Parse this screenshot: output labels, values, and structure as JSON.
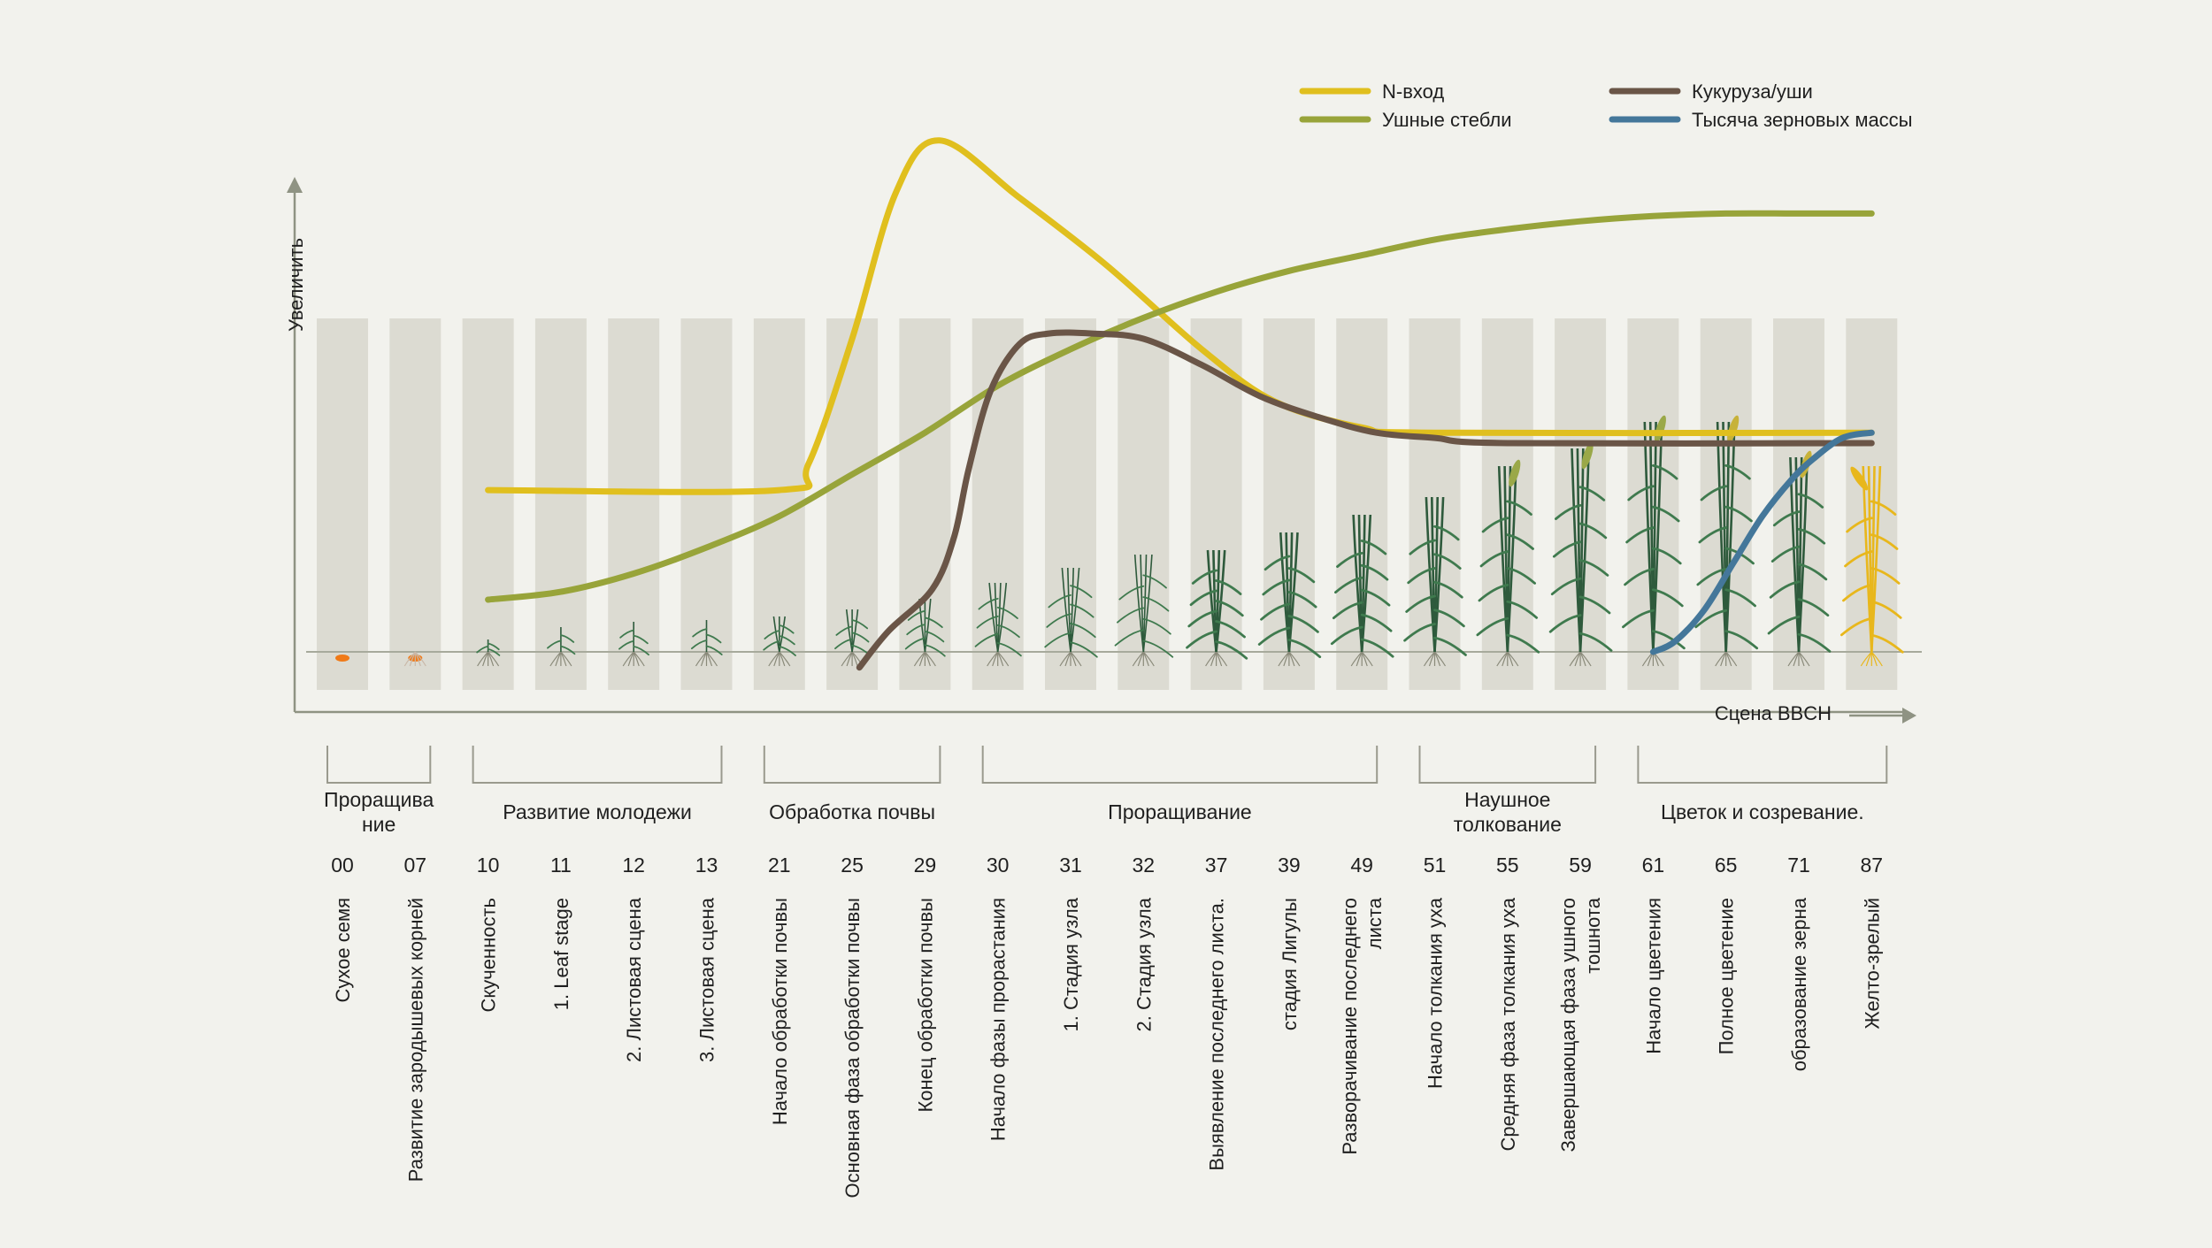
{
  "colors": {
    "background": "#f2f2ed",
    "column": "#dcdbd2",
    "axis": "#8f9383",
    "n_input": "#e0bf1e",
    "ear_stems": "#98a43a",
    "corn_ears": "#6a5547",
    "grain_mass": "#44779a",
    "plant": "#2e5a3c",
    "ripe_plant": "#e8b71c",
    "seed": "#f07a18"
  },
  "legend": [
    {
      "key": "n_input",
      "label": "N-вход"
    },
    {
      "key": "corn_ears",
      "label": "Кукуруза/уши"
    },
    {
      "key": "ear_stems",
      "label": "Ушные стебли"
    },
    {
      "key": "grain_mass",
      "label": "Тысяча зерновых массы"
    }
  ],
  "groups": [
    {
      "label": "Проращива ние",
      "lines": [
        "Проращива",
        "ние"
      ],
      "from": 0,
      "to": 1
    },
    {
      "label": "Развитие молодежи",
      "lines": [
        "Развитие молодежи"
      ],
      "from": 2,
      "to": 5
    },
    {
      "label": "Обработка почвы",
      "lines": [
        "Обработка почвы"
      ],
      "from": 6,
      "to": 8
    },
    {
      "label": "Проращивание",
      "lines": [
        "Проращивание"
      ],
      "from": 9,
      "to": 14
    },
    {
      "label": "Наушное толкование",
      "lines": [
        "Наушное",
        "толкование"
      ],
      "from": 15,
      "to": 17
    },
    {
      "label": "Цветок и созревание.",
      "lines": [
        "Цветок и созревание."
      ],
      "from": 18,
      "to": 21
    }
  ],
  "chart_data": {
    "type": "line",
    "title": "",
    "xlabel": "Сцена BBCH",
    "ylabel": "Увеличить",
    "y_ticks_shown": false,
    "categories": [
      "00",
      "07",
      "10",
      "11",
      "12",
      "13",
      "21",
      "25",
      "29",
      "30",
      "31",
      "32",
      "37",
      "39",
      "49",
      "51",
      "55",
      "59",
      "61",
      "65",
      "71",
      "87"
    ],
    "stage_names": [
      [
        "Сухое семя"
      ],
      [
        "Развитие зародышевых корней"
      ],
      [
        "Скученность"
      ],
      [
        "1. Leaf stage"
      ],
      [
        "2. Листовая сцена"
      ],
      [
        "3. Листовая сцена"
      ],
      [
        "Начало обработки почвы"
      ],
      [
        "Основная фаза обработки почвы"
      ],
      [
        "Конец обработки почвы"
      ],
      [
        "Начало фазы прорастания"
      ],
      [
        "1. Стадия узла"
      ],
      [
        "2. Стадия узла"
      ],
      [
        "Выявление последнего листа."
      ],
      [
        "стадия Лигулы"
      ],
      [
        "Разворачивание последнего",
        "листа"
      ],
      [
        "Начало толкания уха"
      ],
      [
        "Средняя фаза толкания уха"
      ],
      [
        "Завершающая фаза ушного",
        "тошнота"
      ],
      [
        "Начало цветения"
      ],
      [
        "Полное цветение"
      ],
      [
        "образование зерна"
      ],
      [
        "Желто-зрелый"
      ]
    ],
    "y_range": [
      0,
      100
    ],
    "series": [
      {
        "name": "N-вход",
        "key": "n_input",
        "points": [
          [
            2,
            31
          ],
          [
            6,
            31
          ],
          [
            6.4,
            36
          ],
          [
            7,
            60
          ],
          [
            7.6,
            88
          ],
          [
            8.2,
            98
          ],
          [
            9.3,
            87
          ],
          [
            10.5,
            74
          ],
          [
            11.8,
            58
          ],
          [
            12.8,
            48
          ],
          [
            14,
            43
          ],
          [
            15,
            42
          ],
          [
            21,
            42
          ]
        ]
      },
      {
        "name": "Ушные стебли",
        "key": "ear_stems",
        "points": [
          [
            2,
            10
          ],
          [
            3,
            11.5
          ],
          [
            4,
            15
          ],
          [
            5,
            20
          ],
          [
            6,
            26
          ],
          [
            7,
            34
          ],
          [
            8,
            42
          ],
          [
            9,
            51
          ],
          [
            10,
            58
          ],
          [
            11,
            64
          ],
          [
            12,
            69
          ],
          [
            13,
            73
          ],
          [
            14,
            76
          ],
          [
            15,
            79
          ],
          [
            16,
            81
          ],
          [
            17,
            82.5
          ],
          [
            18,
            83.5
          ],
          [
            19,
            84
          ],
          [
            20,
            84
          ],
          [
            21,
            84
          ]
        ]
      },
      {
        "name": "Кукуруза/уши",
        "key": "corn_ears",
        "points": [
          [
            7.1,
            -3
          ],
          [
            7.5,
            4
          ],
          [
            8.1,
            12
          ],
          [
            8.4,
            22
          ],
          [
            8.6,
            35
          ],
          [
            8.9,
            50
          ],
          [
            9.3,
            59
          ],
          [
            9.7,
            61
          ],
          [
            10.3,
            61
          ],
          [
            11.0,
            60
          ],
          [
            11.8,
            55
          ],
          [
            12.6,
            49
          ],
          [
            13.4,
            45
          ],
          [
            14.2,
            42
          ],
          [
            15,
            41
          ],
          [
            16,
            40
          ],
          [
            21,
            40
          ]
        ]
      },
      {
        "name": "Тысяча зерновых массы",
        "key": "grain_mass",
        "points": [
          [
            18,
            0
          ],
          [
            18.3,
            2
          ],
          [
            18.7,
            8
          ],
          [
            19.1,
            17
          ],
          [
            19.5,
            26
          ],
          [
            19.9,
            33
          ],
          [
            20.2,
            37
          ],
          [
            20.6,
            41
          ],
          [
            21,
            42
          ]
        ]
      }
    ]
  }
}
